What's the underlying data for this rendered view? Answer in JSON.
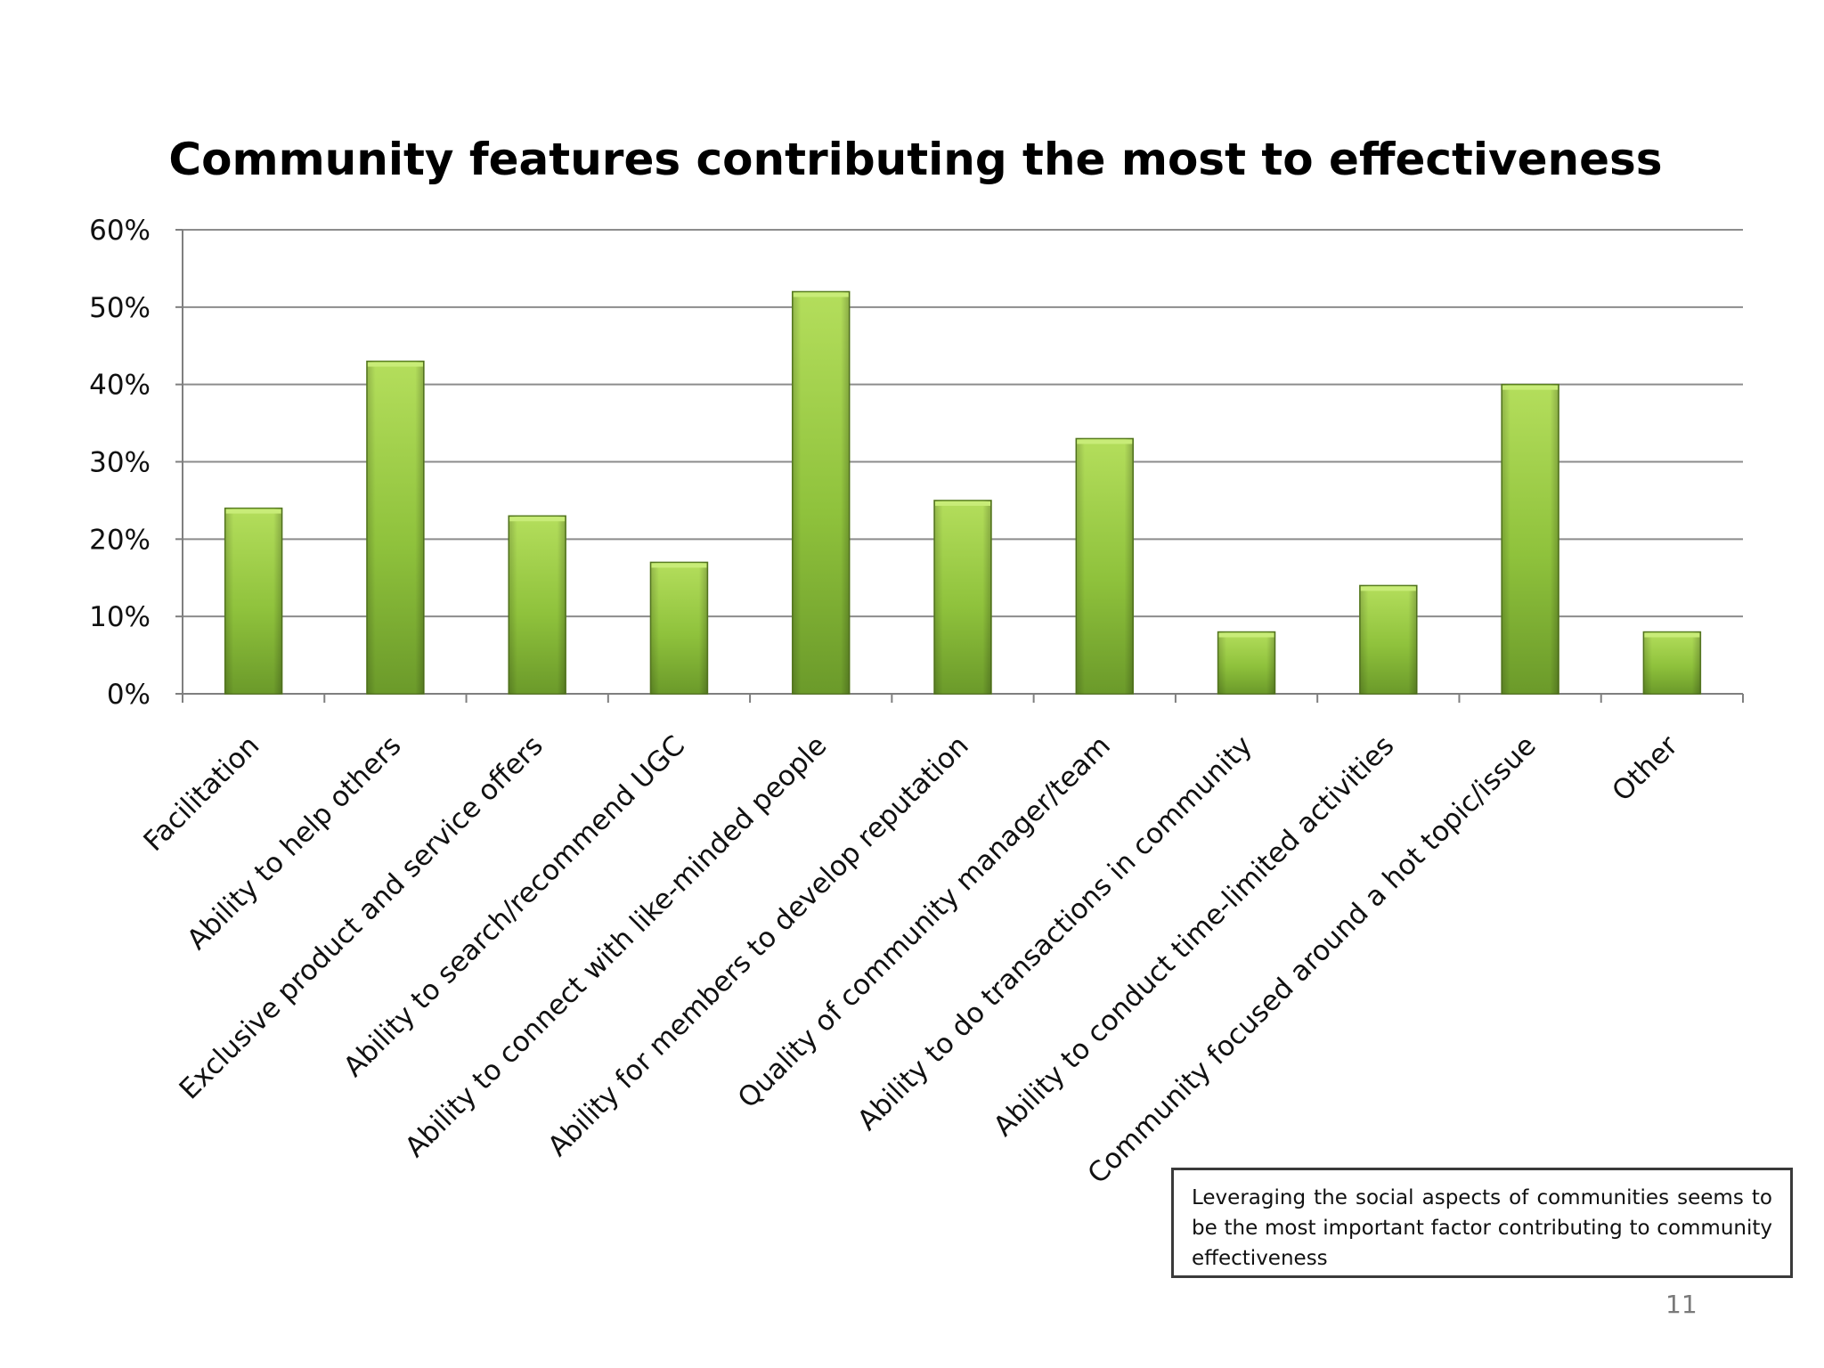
{
  "slide": {
    "note": "Leveraging the social aspects of communities seems to be the most important factor contributing to community effectiveness",
    "page_number": "11"
  },
  "colors": {
    "bar_light": "#b4de5c",
    "bar_mid": "#8fc23c",
    "bar_dark": "#6b9a2a",
    "grid": "#8c8c8c",
    "axis": "#7f7f7f"
  },
  "chart_data": {
    "type": "bar",
    "title": "Community features contributing the most to effectiveness",
    "xlabel": "",
    "ylabel": "",
    "ylim": [
      0,
      0.6
    ],
    "yticks": [
      0,
      0.1,
      0.2,
      0.3,
      0.4,
      0.5,
      0.6
    ],
    "ytick_labels": [
      "0%",
      "10%",
      "20%",
      "30%",
      "40%",
      "50%",
      "60%"
    ],
    "grid": true,
    "categories": [
      "Facilitation",
      "Ability to help others",
      "Exclusive product and service offers",
      "Ability to search/recommend UGC",
      "Ability to connect with like-minded people",
      "Ability for members to develop reputation",
      "Quality of community manager/team",
      "Ability to do transactions in community",
      "Ability to conduct time-limited activities",
      "Community focused around a hot topic/issue",
      "Other"
    ],
    "values": [
      0.24,
      0.43,
      0.23,
      0.17,
      0.52,
      0.25,
      0.33,
      0.08,
      0.14,
      0.4,
      0.08
    ]
  }
}
